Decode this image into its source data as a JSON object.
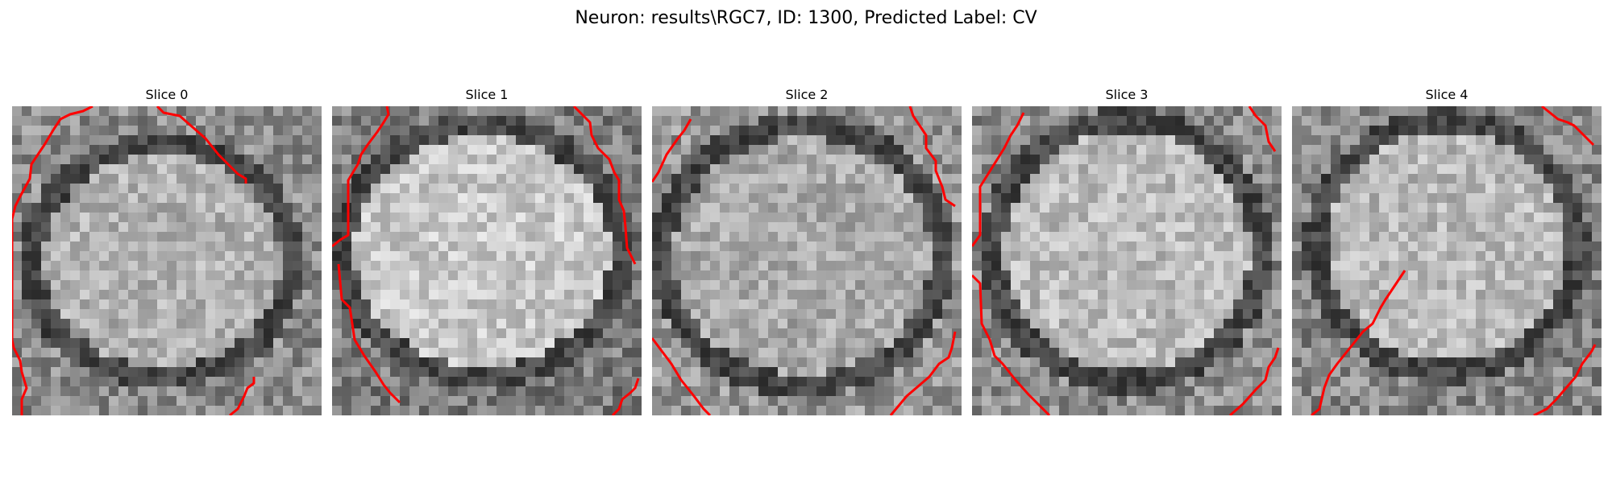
{
  "figure": {
    "title": "Neuron: results\\RGC7, ID: 1300, Predicted Label: CV"
  },
  "slices": [
    {
      "label": "Slice 0"
    },
    {
      "label": "Slice 1"
    },
    {
      "label": "Slice 2"
    },
    {
      "label": "Slice 3"
    },
    {
      "label": "Slice 4"
    }
  ],
  "colors": {
    "contour": "#ff0000",
    "background": "#ffffff"
  }
}
